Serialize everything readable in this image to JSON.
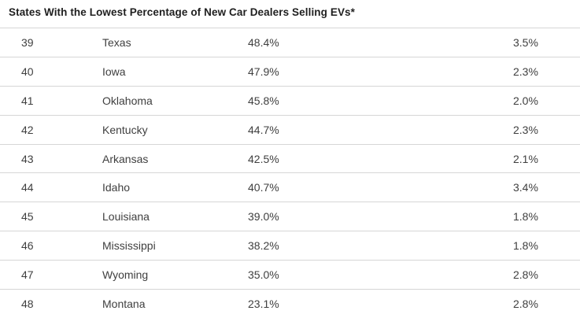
{
  "title": "States With the Lowest Percentage of New Car Dealers Selling EVs*",
  "colors": {
    "background": "#ffffff",
    "title_text": "#1f1f1f",
    "row_text": "#3f3f3f",
    "divider": "#d6d6d6"
  },
  "chart_data": {
    "type": "table",
    "title": "States With the Lowest Percentage of New Car Dealers Selling EVs*",
    "headers_visible": false,
    "rows": [
      [
        "39",
        "Texas",
        "48.4%",
        "3.5%"
      ],
      [
        "40",
        "Iowa",
        "47.9%",
        "2.3%"
      ],
      [
        "41",
        "Oklahoma",
        "45.8%",
        "2.0%"
      ],
      [
        "42",
        "Kentucky",
        "44.7%",
        "2.3%"
      ],
      [
        "43",
        "Arkansas",
        "42.5%",
        "2.1%"
      ],
      [
        "44",
        "Idaho",
        "40.7%",
        "3.4%"
      ],
      [
        "45",
        "Louisiana",
        "39.0%",
        "1.8%"
      ],
      [
        "46",
        "Mississippi",
        "38.2%",
        "1.8%"
      ],
      [
        "47",
        "Wyoming",
        "35.0%",
        "2.8%"
      ],
      [
        "48",
        "Montana",
        "23.1%",
        "2.8%"
      ]
    ]
  }
}
